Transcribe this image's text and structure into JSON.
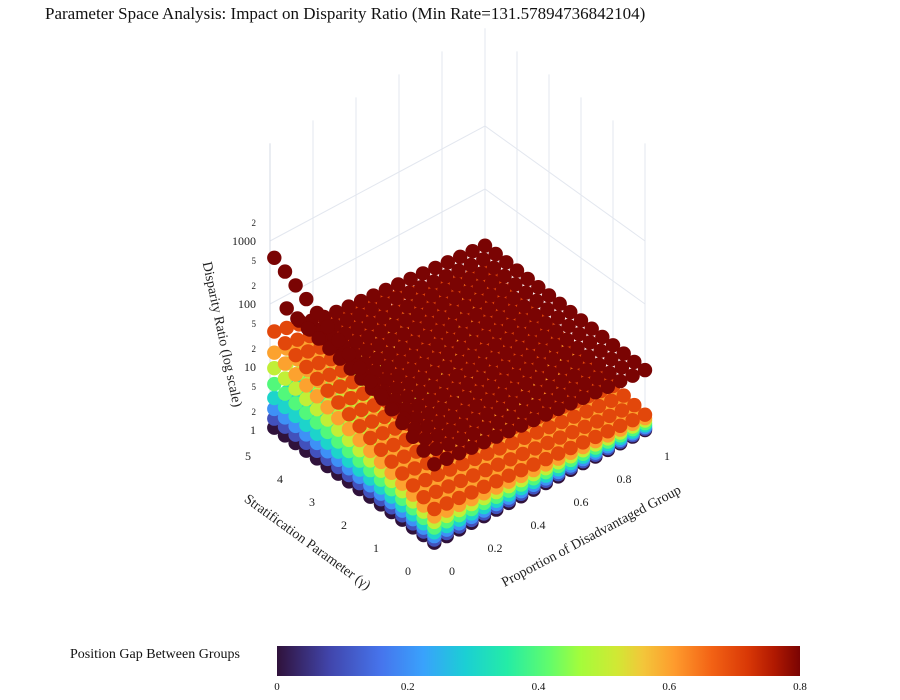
{
  "title": "Parameter Space Analysis: Impact on Disparity Ratio (Min Rate=131.57894736842104)",
  "chart_data": {
    "type": "scatter",
    "mode": "3d",
    "xlabel": "Proportion of Disadvantaged Group",
    "ylabel": "Stratification Parameter (γ)",
    "zlabel": "Disparity Ratio (log scale)",
    "z_scale": "log",
    "x_ticks": [
      "0",
      "0.2",
      "0.4",
      "0.6",
      "0.8",
      "1"
    ],
    "y_ticks": [
      "0",
      "1",
      "2",
      "3",
      "4",
      "5"
    ],
    "z_ticks": [
      {
        "label": "1",
        "major": true
      },
      {
        "label": "2",
        "major": false
      },
      {
        "label": "5",
        "major": false
      },
      {
        "label": "10",
        "major": true
      },
      {
        "label": "2",
        "major": false
      },
      {
        "label": "5",
        "major": false
      },
      {
        "label": "100",
        "major": true
      },
      {
        "label": "2",
        "major": false
      },
      {
        "label": "5",
        "major": false
      },
      {
        "label": "1000",
        "major": true
      },
      {
        "label": "2",
        "major": false
      }
    ],
    "xlim": [
      0,
      1
    ],
    "ylim": [
      0,
      5
    ],
    "position_gaps": [
      0.0,
      0.1,
      0.2,
      0.3,
      0.4,
      0.5,
      0.6,
      0.7,
      0.8
    ],
    "approx_max_disparity": {
      "0.0": 1,
      "0.1": 1.4,
      "0.2": 2,
      "0.3": 3,
      "0.4": 5,
      "0.5": 9,
      "0.6": 16,
      "0.7": 35,
      "0.8": 2200
    },
    "colorbar": {
      "title": "Position Gap Between Groups",
      "range": [
        0,
        0.8
      ],
      "ticks": [
        "0",
        "0.2",
        "0.4",
        "0.6",
        "0.8"
      ],
      "colorscale": "turbo"
    }
  }
}
